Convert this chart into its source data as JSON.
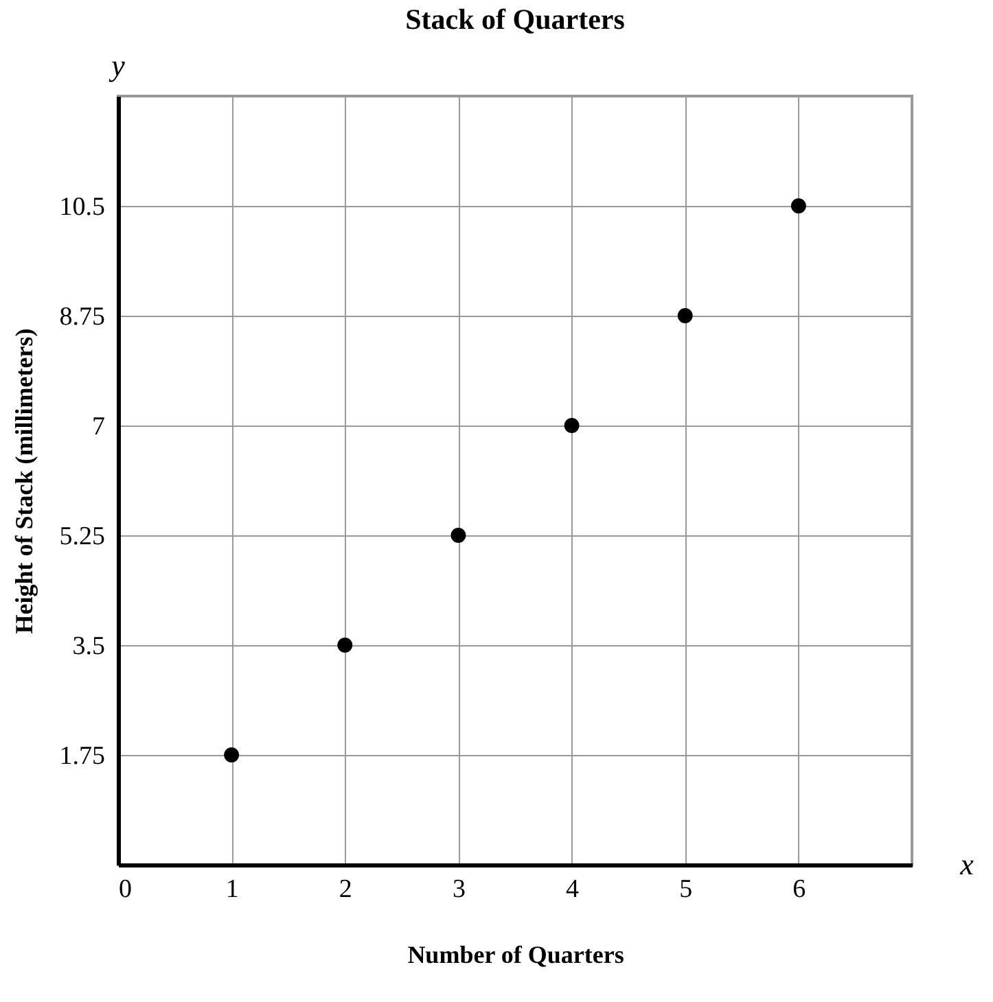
{
  "chart_data": {
    "type": "scatter",
    "title": "Stack of Quarters",
    "xlabel": "Number of Quarters",
    "ylabel": "Height of Stack (millimeters)",
    "annotations": [
      "y",
      "x"
    ],
    "x": [
      1,
      2,
      3,
      4,
      5,
      6
    ],
    "series": [
      {
        "color": "#000000",
        "values": [
          1.75,
          3.5,
          5.25,
          7,
          8.75,
          10.5
        ]
      }
    ],
    "xlim": [
      0,
      7
    ],
    "ylim": [
      0,
      12.25
    ],
    "xticks": [
      0,
      1,
      2,
      3,
      4,
      5,
      6
    ],
    "yticks": [
      {
        "value": 0,
        "label": null
      },
      1.75,
      3.5,
      5.25,
      7,
      8.75,
      10.5
    ],
    "grid": true,
    "marker": "circle"
  }
}
